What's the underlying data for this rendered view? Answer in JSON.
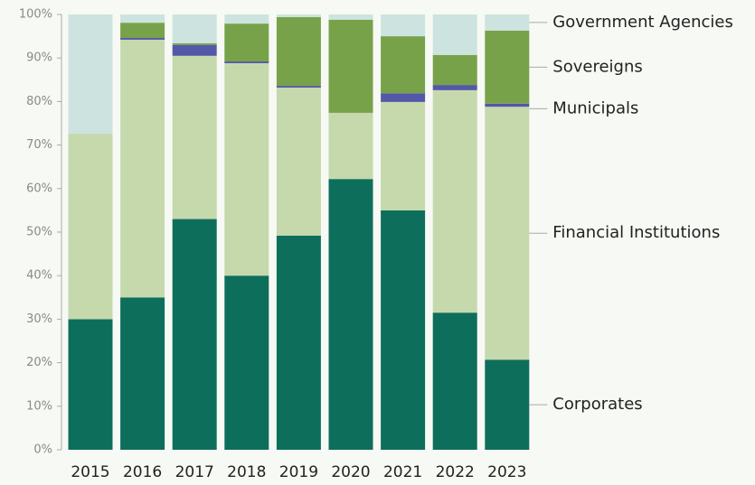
{
  "chart_data": {
    "type": "stacked_bar",
    "categories": [
      "2015",
      "2016",
      "2017",
      "2018",
      "2019",
      "2020",
      "2021",
      "2022",
      "2023"
    ],
    "series": [
      {
        "name": "Corporates",
        "color": "#0e6e5c",
        "values": [
          30,
          35,
          53,
          40,
          49.2,
          62.2,
          55,
          31.5,
          20.7
        ]
      },
      {
        "name": "Financial Institutions",
        "color": "#c5d9ad",
        "values": [
          42.6,
          59.2,
          37.5,
          48.8,
          34,
          15.2,
          24.9,
          51.1,
          58.1
        ]
      },
      {
        "name": "Municipals",
        "color": "#5358a8",
        "values": [
          0,
          0.4,
          2.5,
          0.4,
          0.4,
          0,
          2,
          1.2,
          0.7
        ]
      },
      {
        "name": "Sovereigns",
        "color": "#78a24a",
        "values": [
          0,
          3.5,
          0.4,
          8.7,
          15.8,
          21.4,
          13.1,
          6.9,
          16.8
        ]
      },
      {
        "name": "Government Agencies",
        "color": "#cde3e0",
        "values": [
          27.4,
          1.9,
          6.6,
          2.1,
          0.6,
          1.2,
          5,
          9.3,
          3.7
        ]
      }
    ],
    "ylim": [
      0,
      100
    ],
    "yticks": [
      {
        "value": 0,
        "label": "0%"
      },
      {
        "value": 10,
        "label": "10%"
      },
      {
        "value": 20,
        "label": "20%"
      },
      {
        "value": 30,
        "label": "30%"
      },
      {
        "value": 40,
        "label": "40%"
      },
      {
        "value": 50,
        "label": "50%"
      },
      {
        "value": 60,
        "label": "60%"
      },
      {
        "value": 70,
        "label": "70%"
      },
      {
        "value": 80,
        "label": "80%"
      },
      {
        "value": 90,
        "label": "90%"
      },
      {
        "value": 100,
        "label": "100%"
      }
    ]
  }
}
